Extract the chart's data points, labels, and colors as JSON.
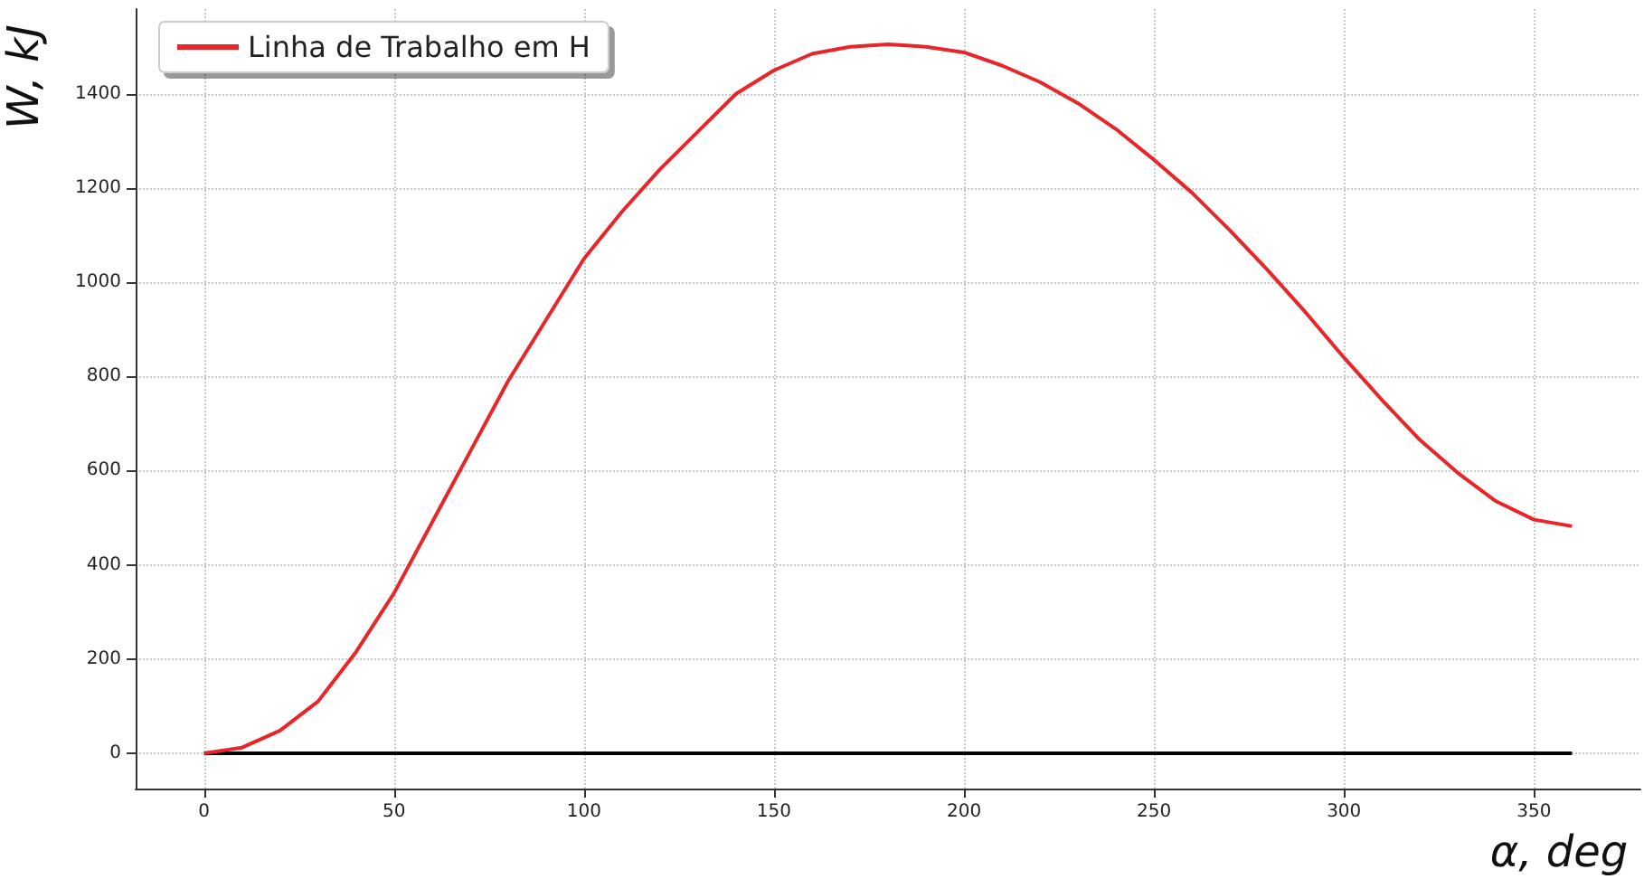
{
  "chart_data": {
    "type": "line",
    "xlabel": "α, deg",
    "ylabel": "W, kJ",
    "xlim": [
      -18,
      378
    ],
    "xticks": [
      0,
      50,
      100,
      150,
      200,
      250,
      300,
      350
    ],
    "ylim": [
      -75,
      1580
    ],
    "yticks": [
      0,
      200,
      400,
      600,
      800,
      1000,
      1200,
      1400
    ],
    "grid": true,
    "legend": "top left",
    "marker": "none",
    "line_style": "solid",
    "series": [
      {
        "name": "Linha de Trabalho em H",
        "color": "#e8262a",
        "x": [
          0,
          10,
          20,
          30,
          40,
          50,
          60,
          70,
          80,
          90,
          100,
          110,
          120,
          130,
          140,
          150,
          160,
          170,
          180,
          190,
          200,
          210,
          220,
          230,
          240,
          250,
          260,
          270,
          280,
          290,
          300,
          310,
          320,
          330,
          340,
          350,
          360
        ],
        "values": [
          0,
          12,
          48,
          110,
          215,
          340,
          490,
          640,
          790,
          920,
          1050,
          1150,
          1240,
          1320,
          1400,
          1450,
          1485,
          1500,
          1505,
          1500,
          1488,
          1460,
          1425,
          1380,
          1325,
          1260,
          1190,
          1110,
          1025,
          935,
          840,
          750,
          665,
          595,
          535,
          496,
          482
        ]
      },
      {
        "color": "#000000",
        "x": [
          0,
          360
        ],
        "values": [
          0,
          0
        ]
      }
    ]
  }
}
